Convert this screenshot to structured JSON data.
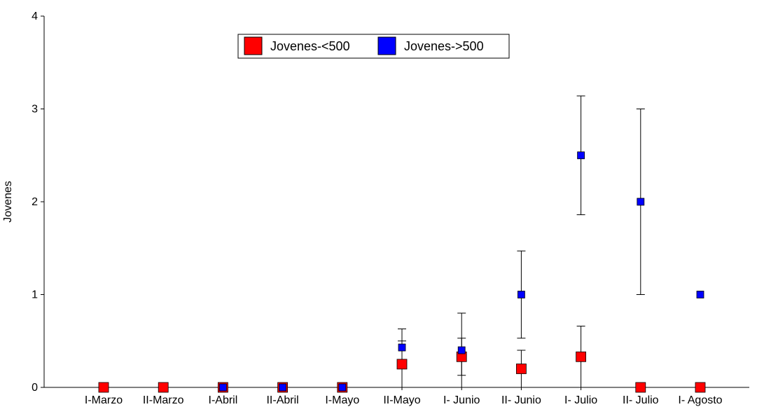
{
  "chart_data": {
    "type": "scatter",
    "title": "",
    "xlabel": "",
    "ylabel": "Jovenes",
    "categories": [
      "I-Marzo",
      "II-Marzo",
      "I-Abril",
      "II-Abril",
      "I-Mayo",
      "II-Mayo",
      "I- Junio",
      "II- Junio",
      "I- Julio",
      "II- Julio",
      "I- Agosto"
    ],
    "ylim": [
      0,
      4
    ],
    "yticks": [
      "0",
      "1",
      "2",
      "3",
      "4"
    ],
    "grid": false,
    "legend_position": "top-center",
    "series": [
      {
        "name": "Jovenes-<500",
        "color": "#ff0000",
        "values": [
          0,
          0,
          0,
          0,
          0,
          0.25,
          0.33,
          0.2,
          0.33,
          0,
          0
        ],
        "error": [
          null,
          null,
          null,
          null,
          null,
          0.25,
          0.2,
          0.2,
          0.33,
          null,
          null
        ]
      },
      {
        "name": "Jovenes->500",
        "color": "#0000ff",
        "values": [
          null,
          null,
          0,
          0,
          0,
          0.43,
          0.4,
          1.0,
          2.5,
          2.0,
          1.0
        ],
        "error": [
          null,
          null,
          null,
          null,
          null,
          0.2,
          0.4,
          0.47,
          0.64,
          1.0,
          null
        ]
      }
    ]
  }
}
